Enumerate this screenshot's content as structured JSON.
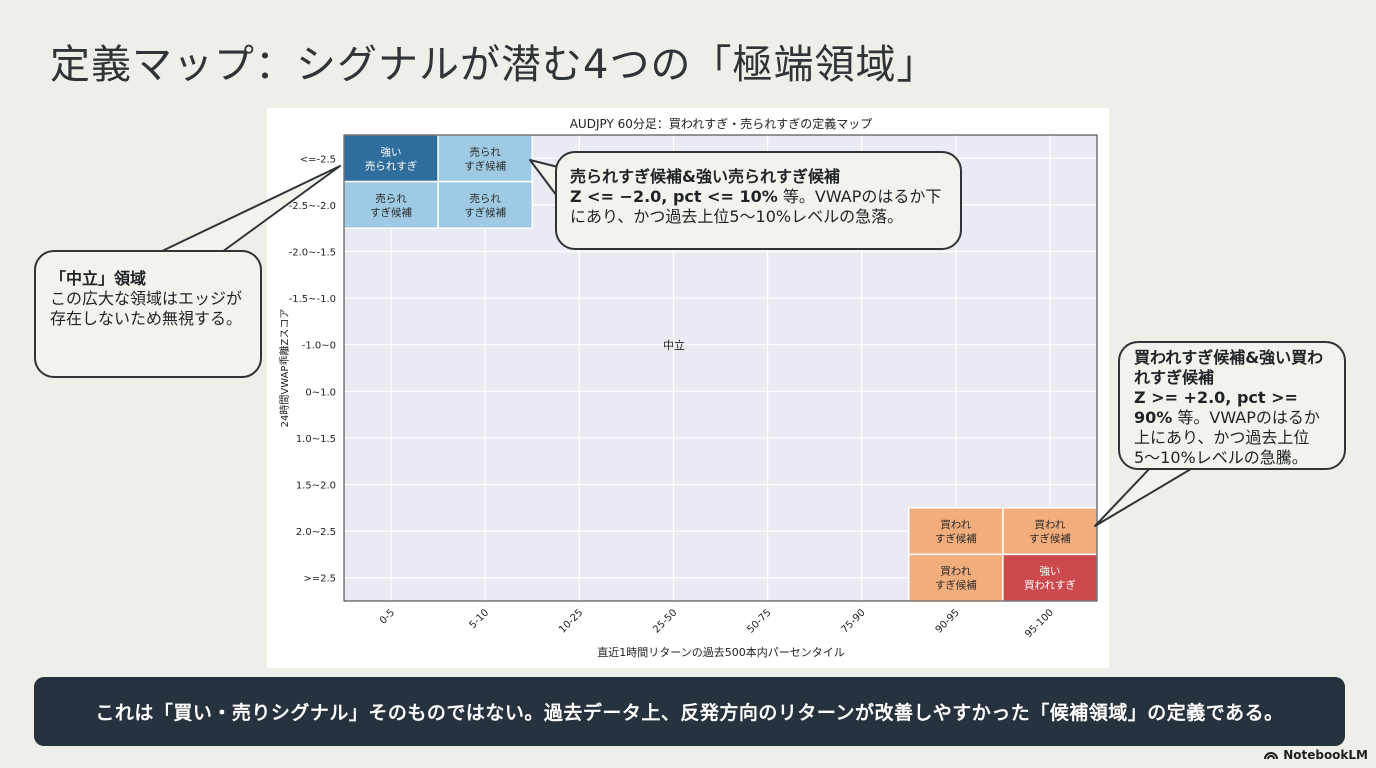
{
  "slide_title": "定義マップ：シグナルが潜む4つの「極端領域」",
  "chart_data": {
    "type": "heatmap",
    "title": "AUDJPY 60分足：買われすぎ・売られすぎの定義マップ",
    "xlabel": "直近1時間リターンの過去500本内パーセンタイル",
    "ylabel": "24時間VWAP乖離Zスコア",
    "x_categories": [
      "0-5",
      "5-10",
      "10-25",
      "25-50",
      "50-75",
      "75-90",
      "90-95",
      "95-100"
    ],
    "y_categories": [
      "<=-2.5",
      "-2.5~-2.0",
      "-2.0~-1.5",
      "-1.5~-1.0",
      "-1.0~0",
      "0~1.0",
      "1.0~1.5",
      "1.5~2.0",
      "2.0~2.5",
      ">=2.5"
    ],
    "cells": [
      {
        "x": "0-5",
        "y": "<=-2.5",
        "lines": [
          "強い",
          "売られすぎ"
        ],
        "color": "#2f6d9c"
      },
      {
        "x": "5-10",
        "y": "<=-2.5",
        "lines": [
          "売られ",
          "すぎ候補"
        ],
        "color": "#9ecbe3"
      },
      {
        "x": "0-5",
        "y": "-2.5~-2.0",
        "lines": [
          "売られ",
          "すぎ候補"
        ],
        "color": "#9ecbe3"
      },
      {
        "x": "5-10",
        "y": "-2.5~-2.0",
        "lines": [
          "売られ",
          "すぎ候補"
        ],
        "color": "#9ecbe3"
      },
      {
        "x": "90-95",
        "y": "2.0~2.5",
        "lines": [
          "買われ",
          "すぎ候補"
        ],
        "color": "#f2ad7c"
      },
      {
        "x": "95-100",
        "y": "2.0~2.5",
        "lines": [
          "買われ",
          "すぎ候補"
        ],
        "color": "#f2ad7c"
      },
      {
        "x": "90-95",
        "y": ">=2.5",
        "lines": [
          "買われ",
          "すぎ候補"
        ],
        "color": "#f2ad7c"
      },
      {
        "x": "95-100",
        "y": ">=2.5",
        "lines": [
          "強い",
          "買われすぎ"
        ],
        "color": "#cc4a4e"
      }
    ],
    "neutral_label": "中立",
    "grid": true,
    "colors": {
      "plot_bg": "#eaeaf2",
      "grid": "#ffffff"
    }
  },
  "callouts": {
    "neutral": {
      "title": "「中立」領域",
      "body": "この広大な領域はエッジが存在しないため無視する。"
    },
    "oversold": {
      "title": "売られすぎ候補&強い売られすぎ候補",
      "condition": "Z <= −2.0, pct <= 10%",
      "body": " 等。VWAPのはるか下にあり、かつ過去上位5〜10%レベルの急落。"
    },
    "overbought": {
      "title": "買われすぎ候補&強い買われすぎ候補",
      "condition": "Z >= +2.0, pct >= 90%",
      "body": " 等。VWAPのはるか上にあり、かつ過去上位5〜10%レベルの急騰。"
    }
  },
  "banner": "これは「買い・売りシグナル」そのものではない。過去データ上、反発方向のリターンが改善しやすかった「候補領域」の定義である。",
  "brand": {
    "name": "NotebookLM",
    "icon": "notebook-logo-icon"
  }
}
